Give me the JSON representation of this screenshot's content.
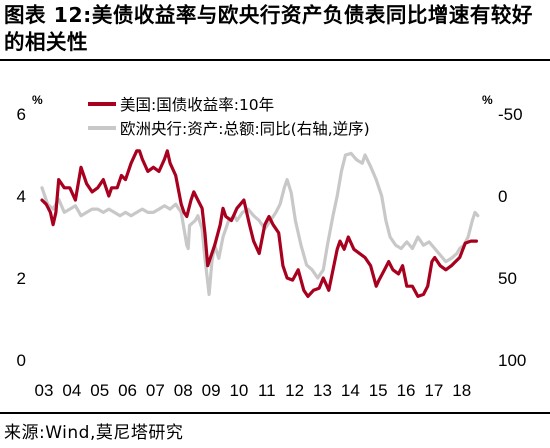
{
  "title": "图表 12:美债收益率与欧央行资产负债表同比增速有较好的相关性",
  "source": "来源:Wind,莫尼塔研究",
  "chart_data": {
    "type": "line",
    "title": "",
    "left_axis": {
      "unit": "%",
      "ylim": [
        0,
        6
      ],
      "ticks": [
        "0",
        "2",
        "4",
        "6"
      ]
    },
    "right_axis": {
      "unit": "%",
      "ylim": [
        100,
        -50
      ],
      "inverted": true,
      "ticks": [
        "-50",
        "0",
        "50",
        "100"
      ]
    },
    "x_axis": {
      "range": [
        2003,
        2018.8
      ],
      "ticks": [
        "03",
        "04",
        "05",
        "06",
        "07",
        "08",
        "09",
        "10",
        "11",
        "12",
        "13",
        "14",
        "15",
        "16",
        "17",
        "18"
      ]
    },
    "legend_position": "top-center",
    "series": [
      {
        "name": "美国:国债收益率:10年",
        "axis": "left",
        "color": "#a8001f",
        "points": [
          [
            2003.0,
            3.9
          ],
          [
            2003.15,
            3.8
          ],
          [
            2003.3,
            3.6
          ],
          [
            2003.4,
            3.3
          ],
          [
            2003.5,
            3.6
          ],
          [
            2003.6,
            4.4
          ],
          [
            2003.8,
            4.2
          ],
          [
            2004.0,
            4.2
          ],
          [
            2004.2,
            3.9
          ],
          [
            2004.4,
            4.7
          ],
          [
            2004.6,
            4.3
          ],
          [
            2004.8,
            4.1
          ],
          [
            2005.0,
            4.2
          ],
          [
            2005.2,
            4.4
          ],
          [
            2005.4,
            4.0
          ],
          [
            2005.5,
            4.2
          ],
          [
            2005.7,
            4.2
          ],
          [
            2005.85,
            4.5
          ],
          [
            2006.0,
            4.4
          ],
          [
            2006.2,
            4.8
          ],
          [
            2006.4,
            5.1
          ],
          [
            2006.5,
            5.1
          ],
          [
            2006.6,
            4.9
          ],
          [
            2006.8,
            4.6
          ],
          [
            2007.0,
            4.7
          ],
          [
            2007.2,
            4.6
          ],
          [
            2007.4,
            4.9
          ],
          [
            2007.5,
            5.1
          ],
          [
            2007.6,
            4.8
          ],
          [
            2007.8,
            4.5
          ],
          [
            2008.0,
            3.8
          ],
          [
            2008.1,
            3.6
          ],
          [
            2008.2,
            3.5
          ],
          [
            2008.35,
            3.9
          ],
          [
            2008.45,
            4.1
          ],
          [
            2008.6,
            3.9
          ],
          [
            2008.75,
            3.7
          ],
          [
            2008.85,
            3.1
          ],
          [
            2008.95,
            2.3
          ],
          [
            2009.05,
            2.5
          ],
          [
            2009.2,
            2.8
          ],
          [
            2009.4,
            3.3
          ],
          [
            2009.5,
            3.7
          ],
          [
            2009.6,
            3.5
          ],
          [
            2009.8,
            3.4
          ],
          [
            2010.0,
            3.7
          ],
          [
            2010.25,
            3.9
          ],
          [
            2010.45,
            3.3
          ],
          [
            2010.6,
            2.9
          ],
          [
            2010.8,
            2.6
          ],
          [
            2011.0,
            3.3
          ],
          [
            2011.15,
            3.5
          ],
          [
            2011.3,
            3.3
          ],
          [
            2011.5,
            3.1
          ],
          [
            2011.65,
            2.3
          ],
          [
            2011.8,
            2.0
          ],
          [
            2012.0,
            1.95
          ],
          [
            2012.2,
            2.2
          ],
          [
            2012.4,
            1.7
          ],
          [
            2012.55,
            1.55
          ],
          [
            2012.75,
            1.7
          ],
          [
            2012.95,
            1.75
          ],
          [
            2013.1,
            2.0
          ],
          [
            2013.3,
            1.7
          ],
          [
            2013.45,
            2.2
          ],
          [
            2013.6,
            2.7
          ],
          [
            2013.7,
            2.9
          ],
          [
            2013.85,
            2.7
          ],
          [
            2014.0,
            3.0
          ],
          [
            2014.2,
            2.7
          ],
          [
            2014.4,
            2.6
          ],
          [
            2014.6,
            2.5
          ],
          [
            2014.8,
            2.3
          ],
          [
            2015.0,
            1.8
          ],
          [
            2015.1,
            1.95
          ],
          [
            2015.3,
            2.2
          ],
          [
            2015.45,
            2.4
          ],
          [
            2015.6,
            2.2
          ],
          [
            2015.8,
            2.1
          ],
          [
            2015.95,
            2.3
          ],
          [
            2016.1,
            1.8
          ],
          [
            2016.3,
            1.8
          ],
          [
            2016.5,
            1.55
          ],
          [
            2016.7,
            1.6
          ],
          [
            2016.85,
            1.8
          ],
          [
            2017.0,
            2.4
          ],
          [
            2017.1,
            2.5
          ],
          [
            2017.3,
            2.3
          ],
          [
            2017.5,
            2.2
          ],
          [
            2017.7,
            2.3
          ],
          [
            2017.85,
            2.4
          ],
          [
            2018.0,
            2.5
          ],
          [
            2018.2,
            2.85
          ],
          [
            2018.4,
            2.9
          ],
          [
            2018.6,
            2.9
          ]
        ]
      },
      {
        "name": "欧洲央行:资产:总额:同比(右轴,逆序)",
        "axis": "right",
        "color": "#c8c8c8",
        "points": [
          [
            2003.0,
            -5
          ],
          [
            2003.2,
            5
          ],
          [
            2003.4,
            8
          ],
          [
            2003.6,
            2
          ],
          [
            2003.8,
            10
          ],
          [
            2004.0,
            8
          ],
          [
            2004.2,
            6
          ],
          [
            2004.4,
            12
          ],
          [
            2004.6,
            10
          ],
          [
            2004.8,
            8
          ],
          [
            2005.0,
            8
          ],
          [
            2005.2,
            10
          ],
          [
            2005.4,
            8
          ],
          [
            2005.6,
            10
          ],
          [
            2005.8,
            12
          ],
          [
            2006.0,
            10
          ],
          [
            2006.2,
            12
          ],
          [
            2006.4,
            10
          ],
          [
            2006.6,
            8
          ],
          [
            2006.8,
            10
          ],
          [
            2007.0,
            10
          ],
          [
            2007.2,
            8
          ],
          [
            2007.4,
            6
          ],
          [
            2007.6,
            8
          ],
          [
            2007.8,
            5
          ],
          [
            2008.0,
            10
          ],
          [
            2008.1,
            20
          ],
          [
            2008.2,
            30
          ],
          [
            2008.25,
            32
          ],
          [
            2008.3,
            18
          ],
          [
            2008.5,
            15
          ],
          [
            2008.6,
            12
          ],
          [
            2008.75,
            20
          ],
          [
            2008.85,
            38
          ],
          [
            2008.9,
            45
          ],
          [
            2009.0,
            60
          ],
          [
            2009.1,
            40
          ],
          [
            2009.2,
            30
          ],
          [
            2009.35,
            38
          ],
          [
            2009.5,
            25
          ],
          [
            2009.7,
            15
          ],
          [
            2009.9,
            12
          ],
          [
            2010.0,
            15
          ],
          [
            2010.2,
            10
          ],
          [
            2010.4,
            8
          ],
          [
            2010.6,
            12
          ],
          [
            2010.8,
            15
          ],
          [
            2011.0,
            20
          ],
          [
            2011.2,
            15
          ],
          [
            2011.4,
            10
          ],
          [
            2011.55,
            5
          ],
          [
            2011.7,
            -5
          ],
          [
            2011.8,
            -10
          ],
          [
            2011.95,
            -2
          ],
          [
            2012.1,
            15
          ],
          [
            2012.3,
            30
          ],
          [
            2012.5,
            42
          ],
          [
            2012.7,
            45
          ],
          [
            2012.9,
            50
          ],
          [
            2013.1,
            45
          ],
          [
            2013.25,
            30
          ],
          [
            2013.45,
            12
          ],
          [
            2013.6,
            0
          ],
          [
            2013.75,
            -15
          ],
          [
            2013.9,
            -25
          ],
          [
            2014.1,
            -26
          ],
          [
            2014.3,
            -22
          ],
          [
            2014.5,
            -20
          ],
          [
            2014.6,
            -25
          ],
          [
            2014.8,
            -18
          ],
          [
            2015.0,
            -10
          ],
          [
            2015.2,
            0
          ],
          [
            2015.35,
            15
          ],
          [
            2015.5,
            25
          ],
          [
            2015.7,
            30
          ],
          [
            2015.9,
            32
          ],
          [
            2016.1,
            28
          ],
          [
            2016.3,
            32
          ],
          [
            2016.5,
            25
          ],
          [
            2016.7,
            30
          ],
          [
            2016.9,
            28
          ],
          [
            2017.1,
            32
          ],
          [
            2017.3,
            36
          ],
          [
            2017.5,
            40
          ],
          [
            2017.7,
            38
          ],
          [
            2017.9,
            35
          ],
          [
            2018.0,
            32
          ],
          [
            2018.15,
            30
          ],
          [
            2018.3,
            25
          ],
          [
            2018.45,
            15
          ],
          [
            2018.55,
            10
          ],
          [
            2018.65,
            12
          ]
        ]
      }
    ]
  }
}
